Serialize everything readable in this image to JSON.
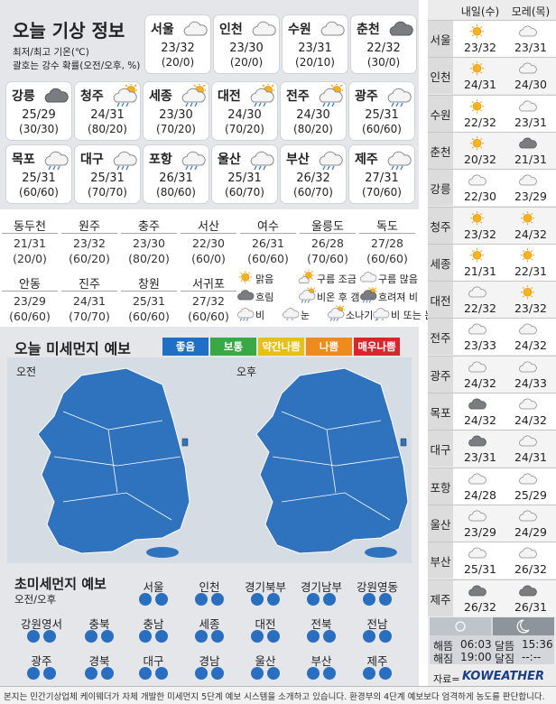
{
  "header": {
    "title": "오늘 기상 정보",
    "subtitle": [
      "최저/최고 기온(℃)",
      "괄호는 강수 확률(오전/오후, %)"
    ]
  },
  "legend": [
    "맑음",
    "구름 조금",
    "구름 많음",
    "흐림",
    "비온 후 갬",
    "흐려져 비",
    "비",
    "눈",
    "소나기",
    "비 또는 눈"
  ],
  "cities": [
    {
      "name": "서울",
      "temp": "23/32",
      "pop": "(20/0)",
      "icon": 2
    },
    {
      "name": "인천",
      "temp": "23/30",
      "pop": "(20/0)",
      "icon": 2
    },
    {
      "name": "수원",
      "temp": "23/31",
      "pop": "(20/10)",
      "icon": 2
    },
    {
      "name": "춘천",
      "temp": "22/32",
      "pop": "(30/0)",
      "icon": 3
    },
    {
      "name": "강릉",
      "temp": "25/29",
      "pop": "(30/30)",
      "icon": 3
    },
    {
      "name": "청주",
      "temp": "24/31",
      "pop": "(80/20)",
      "icon": 4
    },
    {
      "name": "세종",
      "temp": "23/30",
      "pop": "(70/20)",
      "icon": 4
    },
    {
      "name": "대전",
      "temp": "24/30",
      "pop": "(70/20)",
      "icon": 4
    },
    {
      "name": "전주",
      "temp": "24/30",
      "pop": "(80/20)",
      "icon": 4
    },
    {
      "name": "광주",
      "temp": "25/31",
      "pop": "(60/60)",
      "icon": 6
    },
    {
      "name": "목포",
      "temp": "25/31",
      "pop": "(60/60)",
      "icon": 6
    },
    {
      "name": "대구",
      "temp": "25/31",
      "pop": "(70/70)",
      "icon": 6
    },
    {
      "name": "포항",
      "temp": "26/31",
      "pop": "(80/60)",
      "icon": 6
    },
    {
      "name": "울산",
      "temp": "25/31",
      "pop": "(60/70)",
      "icon": 6
    },
    {
      "name": "부산",
      "temp": "26/32",
      "pop": "(60/70)",
      "icon": 6
    },
    {
      "name": "제주",
      "temp": "27/31",
      "pop": "(70/60)",
      "icon": 6
    }
  ],
  "minor_cities": [
    {
      "name": "동두천",
      "temp": "21/31",
      "pop": "(20/0)"
    },
    {
      "name": "원주",
      "temp": "23/32",
      "pop": "(60/20)"
    },
    {
      "name": "충주",
      "temp": "23/30",
      "pop": "(80/20)"
    },
    {
      "name": "서산",
      "temp": "22/30",
      "pop": "(60/0)"
    },
    {
      "name": "여수",
      "temp": "26/31",
      "pop": "(60/60)"
    },
    {
      "name": "울릉도",
      "temp": "26/28",
      "pop": "(70/60)"
    },
    {
      "name": "독도",
      "temp": "27/28",
      "pop": "(60/60)"
    },
    {
      "name": "안동",
      "temp": "23/29",
      "pop": "(60/60)"
    },
    {
      "name": "진주",
      "temp": "24/31",
      "pop": "(70/70)"
    },
    {
      "name": "창원",
      "temp": "25/31",
      "pop": "(60/60)"
    },
    {
      "name": "서귀포",
      "temp": "27/32",
      "pop": "(60/60)"
    }
  ],
  "dust": {
    "title": "오늘 미세먼지 예보",
    "am": "오전",
    "pm": "오후",
    "levels": [
      {
        "label": "좋음",
        "color": "#1f6fc4"
      },
      {
        "label": "보통",
        "color": "#3aa845"
      },
      {
        "label": "약간나쁨",
        "color": "#e6bf1a"
      },
      {
        "label": "나쁨",
        "color": "#ef8a1c"
      },
      {
        "label": "매우나쁨",
        "color": "#d8262d"
      }
    ]
  },
  "fine_dust": {
    "title": "초미세먼지 예보",
    "subtitle": "오전/오후",
    "dot_color": "#2a6fbf",
    "regions": [
      "서울",
      "인천",
      "경기북부",
      "경기남부",
      "강원영동",
      "강원영서",
      "충북",
      "충남",
      "세종",
      "대전",
      "전북",
      "전남",
      "광주",
      "경북",
      "대구",
      "경남",
      "울산",
      "부산",
      "제주"
    ]
  },
  "outlook": {
    "headers": [
      "내일(수)",
      "모레(목)"
    ],
    "rows": [
      {
        "name": "서울",
        "day1": {
          "temp": "23/32",
          "icon": 0
        },
        "day2": {
          "temp": "23/31",
          "icon": 2
        }
      },
      {
        "name": "인천",
        "day1": {
          "temp": "24/31",
          "icon": 0
        },
        "day2": {
          "temp": "24/30",
          "icon": 2
        }
      },
      {
        "name": "수원",
        "day1": {
          "temp": "22/32",
          "icon": 0
        },
        "day2": {
          "temp": "23/31",
          "icon": 2
        }
      },
      {
        "name": "춘천",
        "day1": {
          "temp": "20/32",
          "icon": 0
        },
        "day2": {
          "temp": "21/31",
          "icon": 3
        }
      },
      {
        "name": "강릉",
        "day1": {
          "temp": "22/30",
          "icon": 2
        },
        "day2": {
          "temp": "23/29",
          "icon": 2
        }
      },
      {
        "name": "청주",
        "day1": {
          "temp": "23/32",
          "icon": 0
        },
        "day2": {
          "temp": "24/32",
          "icon": 0
        }
      },
      {
        "name": "세종",
        "day1": {
          "temp": "21/31",
          "icon": 0
        },
        "day2": {
          "temp": "22/31",
          "icon": 0
        }
      },
      {
        "name": "대전",
        "day1": {
          "temp": "22/32",
          "icon": 2
        },
        "day2": {
          "temp": "23/32",
          "icon": 0
        }
      },
      {
        "name": "전주",
        "day1": {
          "temp": "23/33",
          "icon": 2
        },
        "day2": {
          "temp": "24/32",
          "icon": 2
        }
      },
      {
        "name": "광주",
        "day1": {
          "temp": "24/32",
          "icon": 2
        },
        "day2": {
          "temp": "24/33",
          "icon": 2
        }
      },
      {
        "name": "목포",
        "day1": {
          "temp": "24/32",
          "icon": 3
        },
        "day2": {
          "temp": "24/32",
          "icon": 2
        }
      },
      {
        "name": "대구",
        "day1": {
          "temp": "23/31",
          "icon": 3
        },
        "day2": {
          "temp": "24/31",
          "icon": 2
        }
      },
      {
        "name": "포항",
        "day1": {
          "temp": "24/28",
          "icon": 2
        },
        "day2": {
          "temp": "25/29",
          "icon": 2
        }
      },
      {
        "name": "울산",
        "day1": {
          "temp": "23/29",
          "icon": 2
        },
        "day2": {
          "temp": "24/29",
          "icon": 2
        }
      },
      {
        "name": "부산",
        "day1": {
          "temp": "25/31",
          "icon": 2
        },
        "day2": {
          "temp": "26/32",
          "icon": 2
        }
      },
      {
        "name": "제주",
        "day1": {
          "temp": "26/32",
          "icon": 3
        },
        "day2": {
          "temp": "26/31",
          "icon": 3
        }
      }
    ]
  },
  "astro": {
    "sunrise_label": "해뜸",
    "sunrise": "06:03",
    "sunset_label": "해짐",
    "sunset": "19:00",
    "moonrise_label": "달뜸",
    "moonrise": "15:36",
    "moonset_label": "달짐",
    "moonset": "--:--"
  },
  "source": {
    "label": "자료=",
    "brand": "KOWEATHER"
  },
  "footer": "본지는 민간기상업체 케이웨더가 자체 개발한 미세먼지 5단계 예보 시스템을 소개하고 있습니다. 환경부의 4단계 예보보다 엄격하게 농도를 판단합니다."
}
